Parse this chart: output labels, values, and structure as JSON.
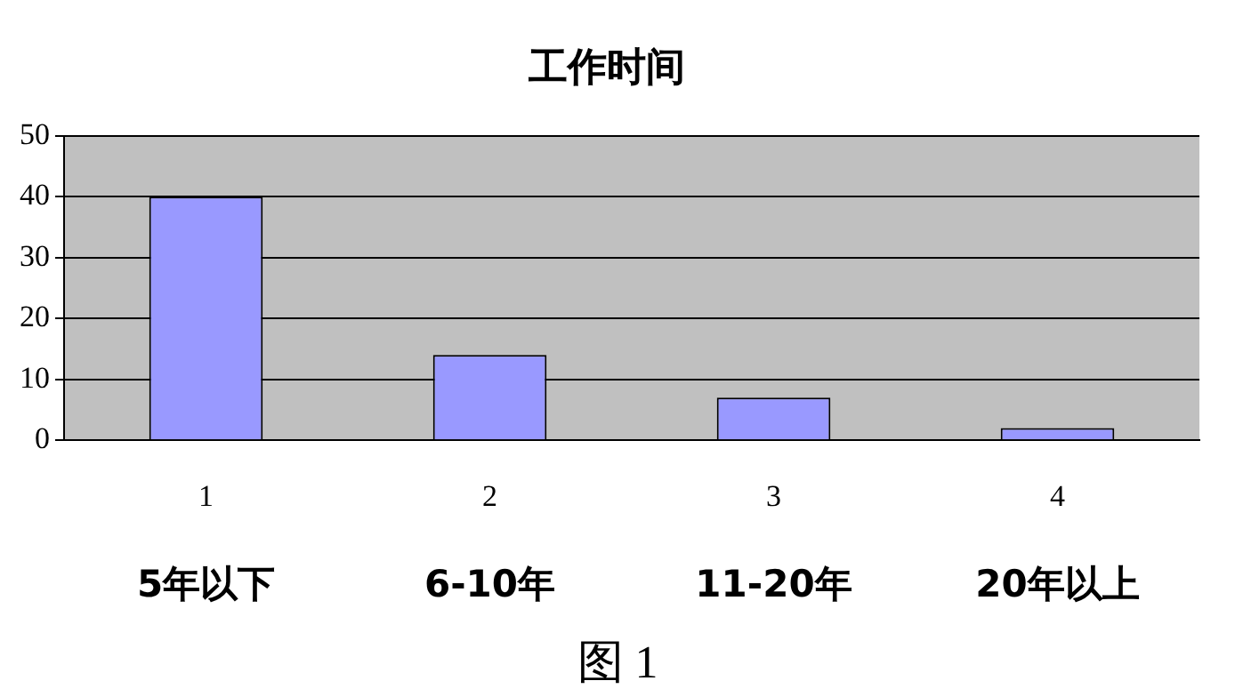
{
  "chart_data": {
    "type": "bar",
    "title": "工作时间",
    "categories": [
      "1",
      "2",
      "3",
      "4"
    ],
    "values": [
      40,
      14,
      7,
      2
    ],
    "color": "#9999ff",
    "ylim": [
      0,
      50
    ],
    "yticks": [
      0,
      10,
      20,
      30,
      40,
      50
    ],
    "grid": "y",
    "legend": false,
    "annotations": [
      "5年以下",
      "6-10年",
      "11-20年",
      "20年以上",
      "图 1"
    ]
  }
}
